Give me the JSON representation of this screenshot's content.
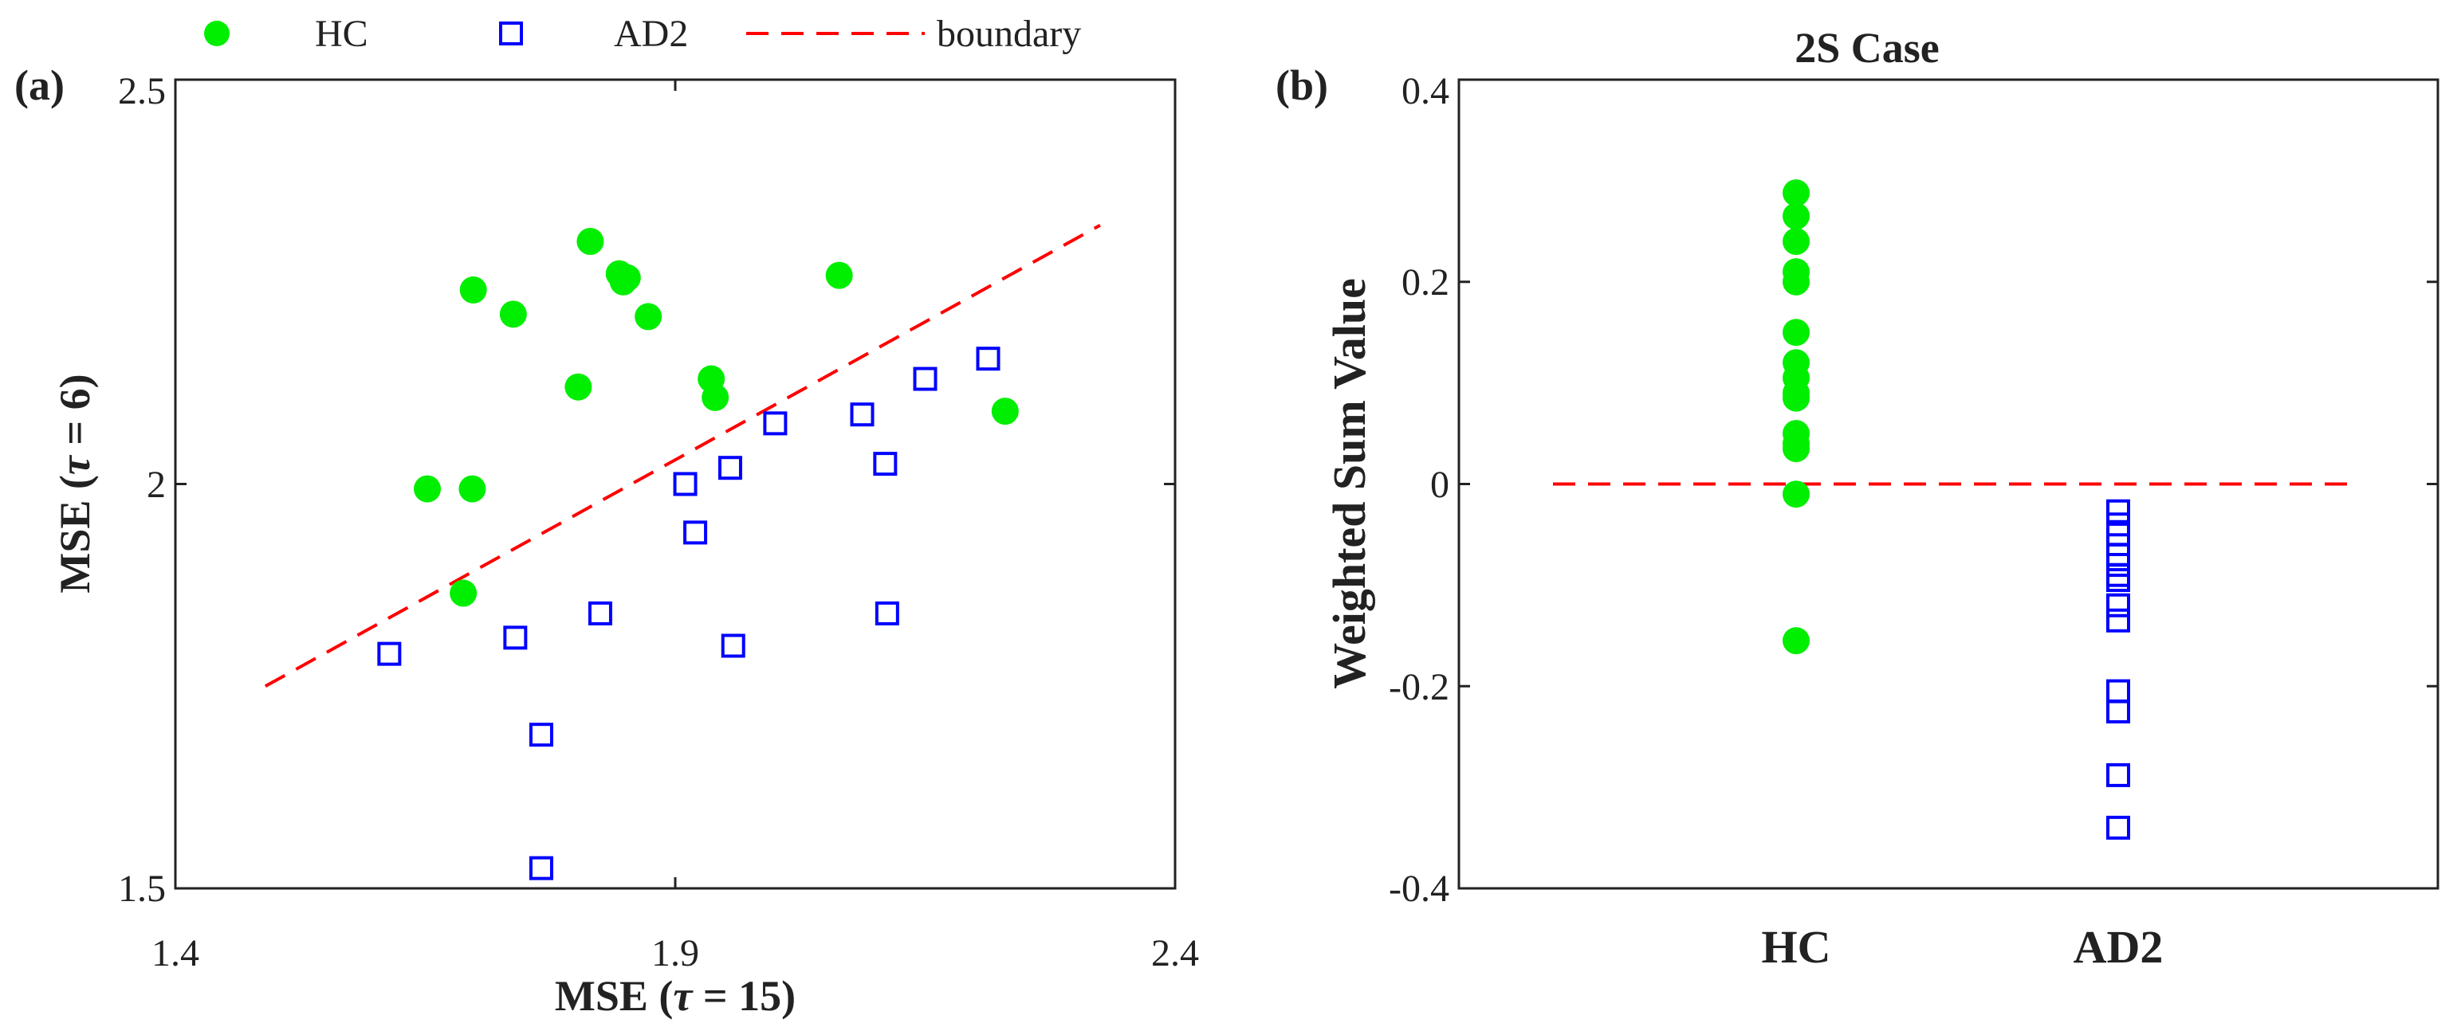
{
  "legend": {
    "hc_label": "HC",
    "ad2_label": "AD2",
    "boundary_label": "boundary"
  },
  "colors": {
    "hc": "#00ee00",
    "ad2": "#0000ff",
    "boundary": "#ff0000",
    "axis": "#222222"
  },
  "chart_data": [
    {
      "panel_label": "(a)",
      "type": "scatter",
      "title": "",
      "xlabel_prefix": "MSE  (",
      "xlabel_tau": "τ",
      "xlabel_suffix": " = 15)",
      "ylabel_prefix": "MSE  (",
      "ylabel_tau": "τ",
      "ylabel_suffix": " = 6)",
      "xlim": [
        1.4,
        2.4
      ],
      "ylim": [
        1.5,
        2.5
      ],
      "xticks": [
        1.4,
        1.9,
        2.4
      ],
      "xtick_labels": [
        "1.4",
        "1.9",
        "2.4"
      ],
      "yticks": [
        1.5,
        2.0,
        2.5
      ],
      "ytick_labels": [
        "1.5",
        "2",
        "2.5"
      ],
      "series": [
        {
          "name": "HC",
          "marker": "circle",
          "x": [
            1.652,
            1.697,
            1.698,
            1.738,
            1.803,
            1.815,
            1.844,
            1.848,
            1.852,
            1.873,
            1.936,
            1.94,
            2.064,
            2.23,
            1.688
          ],
          "y": [
            1.994,
            1.994,
            2.24,
            2.21,
            2.12,
            2.3,
            2.26,
            2.25,
            2.255,
            2.207,
            2.13,
            2.107,
            2.258,
            2.09,
            1.865
          ]
        },
        {
          "name": "AD2",
          "marker": "square",
          "x": [
            1.614,
            1.74,
            1.766,
            1.766,
            1.825,
            1.91,
            1.92,
            1.955,
            1.958,
            2.0,
            2.087,
            2.11,
            2.112,
            2.15,
            2.213
          ],
          "y": [
            1.79,
            1.81,
            1.69,
            1.525,
            1.84,
            2.0,
            1.94,
            2.02,
            1.8,
            2.075,
            2.086,
            2.025,
            1.84,
            2.13,
            2.155
          ]
        },
        {
          "name": "boundary",
          "marker": "dashed-line",
          "x": [
            1.49,
            2.325
          ],
          "y": [
            1.75,
            2.32
          ]
        }
      ]
    },
    {
      "panel_label": "(b)",
      "type": "strip",
      "title": "2S Case",
      "ylabel": "Weighted Sum Value",
      "categories": [
        "HC",
        "AD2"
      ],
      "ylim": [
        -0.4,
        0.4
      ],
      "yticks": [
        -0.4,
        -0.2,
        0,
        0.2,
        0.4
      ],
      "ytick_labels": [
        "-0.4",
        "-0.2",
        "0",
        "0.2",
        "0.4"
      ],
      "series": [
        {
          "name": "HC",
          "marker": "circle",
          "values": [
            0.288,
            0.265,
            0.24,
            0.21,
            0.2,
            0.15,
            0.12,
            0.105,
            0.09,
            0.085,
            0.05,
            0.04,
            0.035,
            -0.01,
            -0.155
          ]
        },
        {
          "name": "AD2",
          "marker": "square",
          "values": [
            -0.027,
            -0.04,
            -0.05,
            -0.07,
            -0.08,
            -0.09,
            -0.095,
            -0.12,
            -0.135,
            -0.205,
            -0.225,
            -0.288,
            -0.34
          ]
        }
      ],
      "reference_line": {
        "name": "zero-line",
        "y": 0,
        "style": "dashed"
      }
    }
  ]
}
